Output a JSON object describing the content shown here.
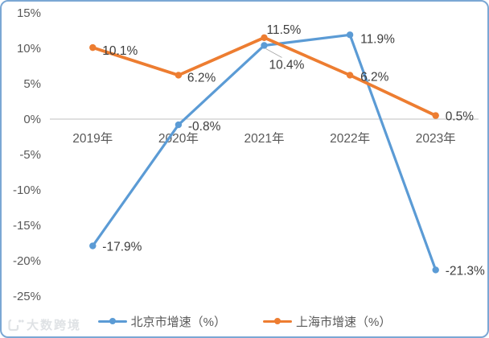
{
  "chart_data": {
    "type": "line",
    "title": "",
    "categories": [
      "2019年",
      "2020年",
      "2021年",
      "2022年",
      "2023年"
    ],
    "axes": {
      "y_tick_values": [
        15,
        10,
        5,
        0,
        -5,
        -10,
        -15,
        -20,
        -25
      ],
      "y_tick_labels": [
        "15%",
        "10%",
        "5%",
        "0%",
        "-5%",
        "-10%",
        "-15%",
        "-20%",
        "-25%"
      ],
      "ylim": [
        -25,
        15
      ],
      "grid": "off",
      "axis_line_color": "#bfbfbf"
    },
    "series": [
      {
        "id": "beijing",
        "name": "北京市增速（%）",
        "color": "#5b9bd5",
        "values": [
          -17.9,
          -0.8,
          10.4,
          11.9,
          -21.3
        ],
        "data_labels": [
          {
            "text": "-17.9%",
            "anchor": "start",
            "dx": 12,
            "dy": 6
          },
          {
            "text": "-0.8%",
            "anchor": "start",
            "dx": 12,
            "dy": 7
          },
          {
            "text": "10.4%",
            "anchor": "start",
            "dx": 6,
            "dy": 29,
            "leader": true
          },
          {
            "text": "11.9%",
            "anchor": "start",
            "dx": 13,
            "dy": 10
          },
          {
            "text": "-21.3%",
            "anchor": "start",
            "dx": 12,
            "dy": 6
          }
        ]
      },
      {
        "id": "shanghai",
        "name": "上海市增速（%）",
        "color": "#ed7d31",
        "values": [
          10.1,
          6.2,
          11.5,
          6.2,
          0.5
        ],
        "data_labels": [
          {
            "text": "10.1%",
            "anchor": "start",
            "dx": 12,
            "dy": 9
          },
          {
            "text": "6.2%",
            "anchor": "start",
            "dx": 11,
            "dy": 8
          },
          {
            "text": "11.5%",
            "anchor": "start",
            "dx": 3,
            "dy": -5
          },
          {
            "text": "6.2%",
            "anchor": "start",
            "dx": 13,
            "dy": 7
          },
          {
            "text": "0.5%",
            "anchor": "start",
            "dx": 12,
            "dy": 6
          }
        ]
      }
    ],
    "legend": {
      "position": "bottom",
      "items": [
        "北京市增速（%）",
        "上海市增速（%）"
      ]
    }
  },
  "watermark": {
    "text": "大数跨境"
  }
}
